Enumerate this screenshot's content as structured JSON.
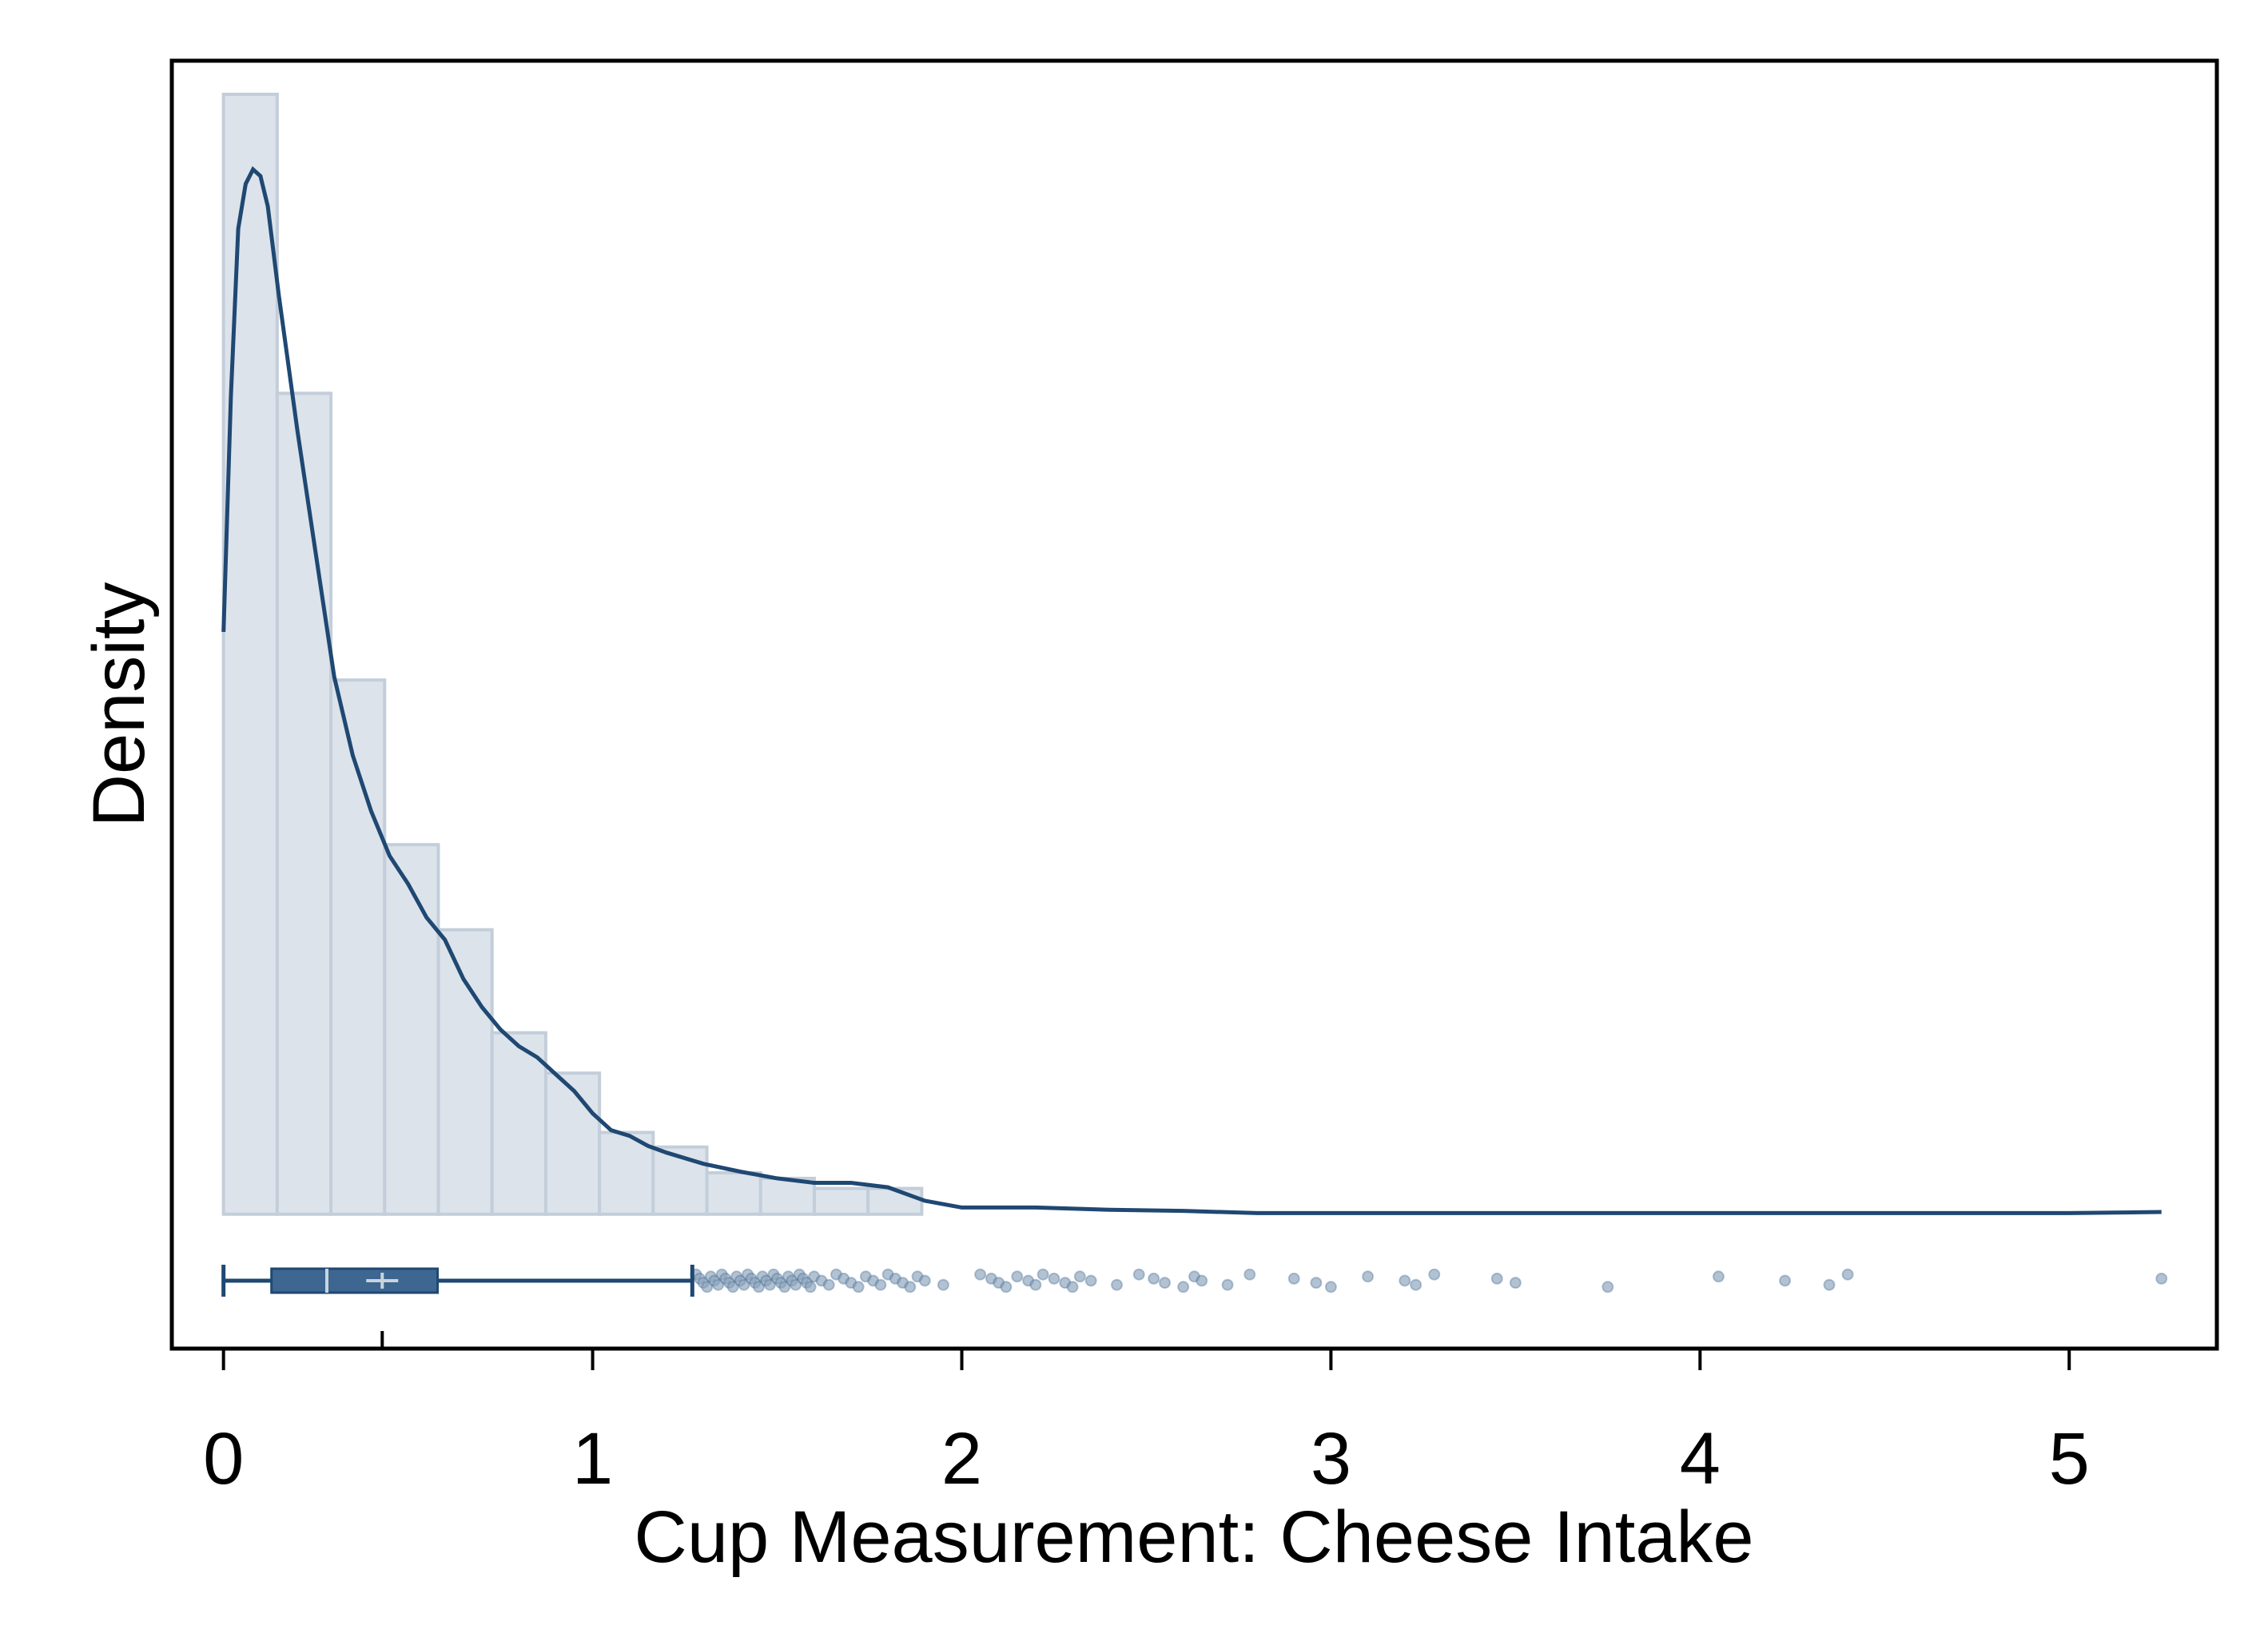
{
  "chart_data": {
    "type": "histogram",
    "title": "",
    "xlabel": "Cup Measurement: Cheese Intake",
    "ylabel": "Density",
    "xlim": [
      -0.14,
      5.4
    ],
    "ylim": [
      -0.12,
      1.03
    ],
    "x_ticks": [
      0,
      1,
      2,
      3,
      4,
      5
    ],
    "x_tick_labels": [
      "0",
      "1",
      "2",
      "3",
      "4",
      "5"
    ],
    "y_ticks_shown": false,
    "grid": false,
    "legend": "none",
    "colors": {
      "bar_fill": "#dce3ea",
      "bar_stroke": "#c3ceda",
      "line": "#1f4872",
      "box": "#3d6690",
      "outlier": "#8aa2ba",
      "frame": "#000000"
    },
    "histogram": {
      "bin_width": 0.1455,
      "bins_start": 0,
      "densities": [
        1.0,
        0.733,
        0.477,
        0.33,
        0.254,
        0.162,
        0.126,
        0.073,
        0.06,
        0.037,
        0.032,
        0.023,
        0.023
      ]
    },
    "kde": {
      "x": [
        0,
        0.02,
        0.04,
        0.06,
        0.08,
        0.1,
        0.12,
        0.15,
        0.2,
        0.25,
        0.3,
        0.35,
        0.4,
        0.45,
        0.5,
        0.55,
        0.6,
        0.65,
        0.7,
        0.75,
        0.8,
        0.85,
        0.9,
        0.95,
        1.0,
        1.05,
        1.1,
        1.15,
        1.2,
        1.3,
        1.4,
        1.5,
        1.6,
        1.7,
        1.8,
        1.9,
        2.0,
        2.2,
        2.4,
        2.6,
        2.8,
        3.0,
        3.5,
        4.0,
        4.5,
        5.0,
        5.25
      ],
      "y": [
        0.52,
        0.73,
        0.88,
        0.92,
        0.933,
        0.927,
        0.9,
        0.82,
        0.7,
        0.59,
        0.48,
        0.41,
        0.36,
        0.32,
        0.295,
        0.265,
        0.245,
        0.21,
        0.185,
        0.165,
        0.15,
        0.14,
        0.125,
        0.11,
        0.09,
        0.075,
        0.07,
        0.061,
        0.055,
        0.045,
        0.038,
        0.032,
        0.028,
        0.028,
        0.024,
        0.012,
        0.006,
        0.006,
        0.004,
        0.003,
        0.001,
        0.001,
        0.001,
        0.001,
        0.001,
        0.001,
        0.002
      ]
    },
    "boxplot": {
      "whisker_low": 0,
      "q1": 0.13,
      "median": 0.28,
      "mean": 0.43,
      "q3": 0.58,
      "whisker_high": 1.27,
      "outliers": [
        1.28,
        1.29,
        1.3,
        1.31,
        1.32,
        1.33,
        1.34,
        1.35,
        1.36,
        1.37,
        1.38,
        1.39,
        1.4,
        1.41,
        1.42,
        1.43,
        1.44,
        1.45,
        1.46,
        1.47,
        1.48,
        1.49,
        1.5,
        1.51,
        1.52,
        1.53,
        1.54,
        1.55,
        1.56,
        1.57,
        1.58,
        1.59,
        1.6,
        1.62,
        1.64,
        1.66,
        1.68,
        1.7,
        1.72,
        1.74,
        1.76,
        1.78,
        1.8,
        1.82,
        1.84,
        1.86,
        1.88,
        1.9,
        1.95,
        2.05,
        2.08,
        2.1,
        2.12,
        2.15,
        2.18,
        2.2,
        2.22,
        2.25,
        2.28,
        2.3,
        2.32,
        2.35,
        2.42,
        2.48,
        2.52,
        2.55,
        2.6,
        2.63,
        2.65,
        2.72,
        2.78,
        2.9,
        2.96,
        3.0,
        3.1,
        3.2,
        3.23,
        3.28,
        3.45,
        3.5,
        3.75,
        4.05,
        4.23,
        4.35,
        4.4,
        5.25
      ]
    }
  }
}
